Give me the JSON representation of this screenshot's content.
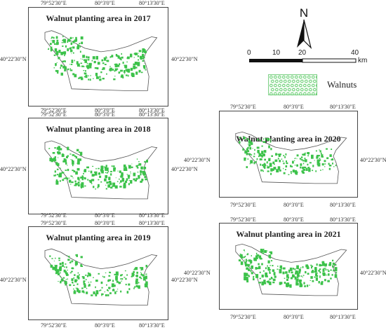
{
  "panels": [
    {
      "id": "p2017",
      "title": "Walnut planting area in 2017",
      "density": 1.0,
      "seed": 17
    },
    {
      "id": "p2018",
      "title": "Walnut planting area in 2018",
      "density": 0.95,
      "seed": 18
    },
    {
      "id": "p2019",
      "title": "Walnut planting area in 2019",
      "density": 0.9,
      "seed": 19
    },
    {
      "id": "p2020",
      "title": "Walnut planting area in 2020",
      "density": 0.8,
      "seed": 20
    },
    {
      "id": "p2021",
      "title": "Walnut planting area in 2021",
      "density": 1.0,
      "seed": 21
    }
  ],
  "coords": {
    "lon": [
      "79°52'30\"E",
      "80°3'0\"E",
      "80°13'30\"E"
    ],
    "lat": "40°22'30\"N"
  },
  "north_label": "N",
  "scale": {
    "ticks": [
      "0",
      "10",
      "20",
      "40"
    ],
    "unit": "km"
  },
  "legend": {
    "label": "Walnuts"
  },
  "colors": {
    "walnut": "#3cc24a",
    "boundary": "#555555"
  }
}
